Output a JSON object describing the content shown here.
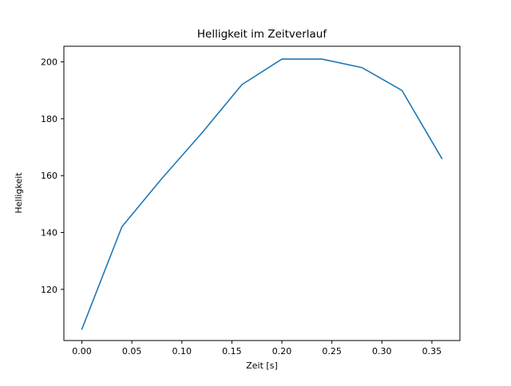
{
  "chart_data": {
    "type": "line",
    "title": "Helligkeit im Zeitverlauf",
    "xlabel": "Zeit [s]",
    "ylabel": "Helligkeit",
    "x": [
      0.0,
      0.04,
      0.08,
      0.12,
      0.16,
      0.2,
      0.24,
      0.28,
      0.32,
      0.36
    ],
    "y": [
      106,
      142,
      159,
      175,
      192,
      201,
      201,
      198,
      190,
      166
    ],
    "xlim": [
      -0.018,
      0.378
    ],
    "ylim": [
      102,
      205.5
    ],
    "xticks": [
      0.0,
      0.05,
      0.1,
      0.15,
      0.2,
      0.25,
      0.3,
      0.35
    ],
    "xtick_labels": [
      "0.00",
      "0.05",
      "0.10",
      "0.15",
      "0.20",
      "0.25",
      "0.30",
      "0.35"
    ],
    "yticks": [
      120,
      140,
      160,
      180,
      200
    ],
    "ytick_labels": [
      "120",
      "140",
      "160",
      "180",
      "200"
    ],
    "line_color": "#1f77b4",
    "axis_color": "#000000",
    "grid": false,
    "legend_position": "none"
  }
}
